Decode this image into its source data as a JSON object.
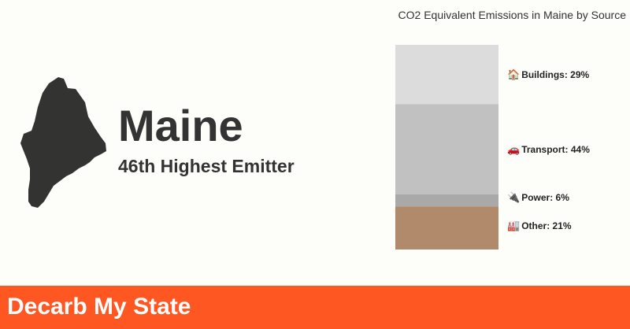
{
  "state": {
    "name": "Maine",
    "rank_text": "46th Highest Emitter"
  },
  "chart_data": {
    "type": "bar",
    "stacked": true,
    "orientation": "vertical",
    "title": "CO2 Equivalent Emissions in Maine by Source",
    "unit": "%",
    "segments": [
      {
        "name": "Buildings",
        "icon": "house-icon",
        "glyph": "🏠",
        "value": 29,
        "label": "Buildings: 29%",
        "color": "#dcdcdc"
      },
      {
        "name": "Transport",
        "icon": "car-icon",
        "glyph": "🚗",
        "value": 44,
        "label": "Transport: 44%",
        "color": "#c1c1c1"
      },
      {
        "name": "Power",
        "icon": "plug-icon",
        "glyph": "🔌",
        "value": 6,
        "label": "Power: 6%",
        "color": "#a9a9a9"
      },
      {
        "name": "Other",
        "icon": "factory-icon",
        "glyph": "🏭",
        "value": 21,
        "label": "Other: 21%",
        "color": "#b08a6b"
      }
    ]
  },
  "footer": {
    "brand": "Decarb My State",
    "color": "#ff5722"
  }
}
